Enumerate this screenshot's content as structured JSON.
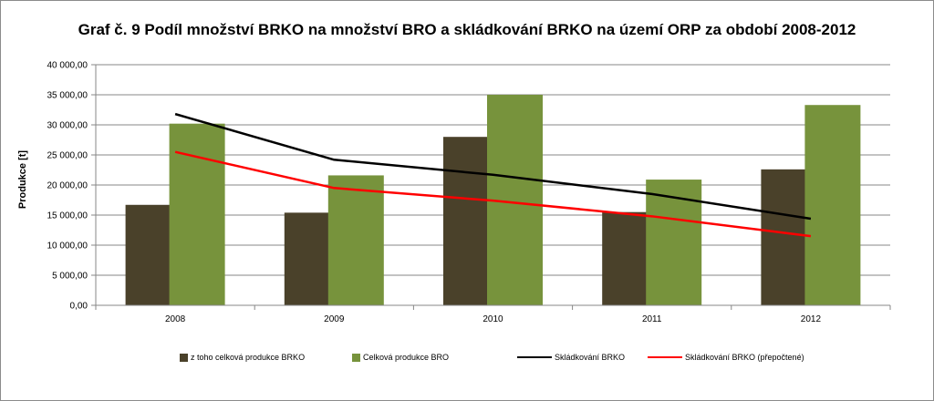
{
  "chart_data": {
    "type": "bar",
    "title": "Graf č. 9 Podíl množství BRKO na množství BRO a skládkování BRKO na území ORP za období 2008-2012",
    "ylabel": "Produkce [t]",
    "xlabel": "",
    "ylim": [
      0,
      40000
    ],
    "yticks": [
      "0,00",
      "5 000,00",
      "10 000,00",
      "15 000,00",
      "20 000,00",
      "25 000,00",
      "30 000,00",
      "35 000,00",
      "40 000,00"
    ],
    "categories": [
      "2008",
      "2009",
      "2010",
      "2011",
      "2012"
    ],
    "grid": true,
    "legend_position": "bottom",
    "series": [
      {
        "name": "z toho celková produkce  BRKO",
        "kind": "bar",
        "color": "#4a412a",
        "values": [
          16700,
          15400,
          28000,
          15500,
          22600
        ]
      },
      {
        "name": "Celková produkce  BRO",
        "kind": "bar",
        "color": "#77933c",
        "values": [
          30200,
          21600,
          35000,
          20900,
          33300
        ]
      },
      {
        "name": "Skládkování  BRKO",
        "kind": "line",
        "color": "#000000",
        "values": [
          31800,
          24200,
          21700,
          18500,
          14400
        ]
      },
      {
        "name": "Skládkování  BRKO (přepočtené)",
        "kind": "line",
        "color": "#ff0000",
        "values": [
          25500,
          19500,
          17400,
          14800,
          11500
        ]
      }
    ]
  }
}
